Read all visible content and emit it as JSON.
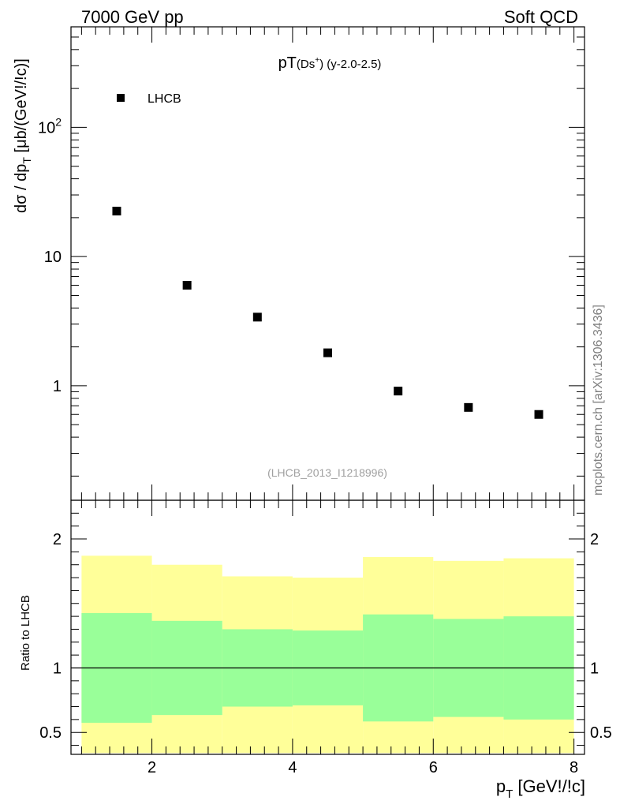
{
  "header": {
    "left": "7000 GeV pp",
    "right": "Soft QCD"
  },
  "side_label": "mcplots.cern.ch [arXiv:1306.3436]",
  "chart_data": [
    {
      "type": "scatter",
      "panel": "main",
      "title_main": "pT",
      "title_particle": "(Ds",
      "title_sup": "+",
      "title_close": ")",
      "title_rest": " (y-2.0-2.5)",
      "ylabel": "dσ / dp",
      "ylabel_sub": "T",
      "ylabel_units": " [μb/(GeV!/!c)]",
      "yscale": "log",
      "ylim": [
        0.13,
        600
      ],
      "xlim": [
        0.85,
        8.15
      ],
      "y_ticks": [
        {
          "value": 1,
          "label": "1"
        },
        {
          "value": 10,
          "label": "10"
        },
        {
          "value": 100,
          "label": "10",
          "sup": "2"
        }
      ],
      "legend": {
        "entries": [
          "LHCB"
        ],
        "placement": "top-left"
      },
      "watermark": "(LHCB_2013_I1218996)",
      "series": [
        {
          "name": "LHCB",
          "x": [
            1.5,
            2.5,
            3.5,
            4.5,
            5.5,
            6.5,
            7.5
          ],
          "y": [
            22.5,
            6.0,
            3.4,
            1.8,
            0.91,
            0.68,
            0.6
          ]
        }
      ]
    },
    {
      "type": "area",
      "panel": "ratio",
      "ylabel": "Ratio to LHCB",
      "xlabel": "p",
      "xlabel_sub": "T",
      "xlabel_units": " [GeV!/!c]",
      "ylim": [
        0.33,
        2.3
      ],
      "xlim": [
        0.85,
        8.15
      ],
      "x_ticks": [
        2,
        4,
        6,
        8
      ],
      "y_ticks": [
        0.5,
        1,
        2
      ],
      "reference_line": 1,
      "bins": [
        [
          1,
          2
        ],
        [
          2,
          3
        ],
        [
          3,
          4
        ],
        [
          4,
          5
        ],
        [
          5,
          6
        ],
        [
          6,
          7
        ],
        [
          7,
          8
        ]
      ],
      "band_outer": {
        "name": "outer uncertainty",
        "color": "#ffff99",
        "low": [
          0.34,
          0.34,
          0.34,
          0.34,
          0.34,
          0.34,
          0.34
        ],
        "high": [
          1.87,
          1.8,
          1.71,
          1.7,
          1.86,
          1.83,
          1.85
        ]
      },
      "band_inner": {
        "name": "inner uncertainty",
        "color": "#99ff99",
        "low": [
          0.575,
          0.635,
          0.7,
          0.71,
          0.585,
          0.62,
          0.6
        ],
        "high": [
          1.425,
          1.365,
          1.3,
          1.29,
          1.415,
          1.38,
          1.4
        ]
      }
    }
  ]
}
